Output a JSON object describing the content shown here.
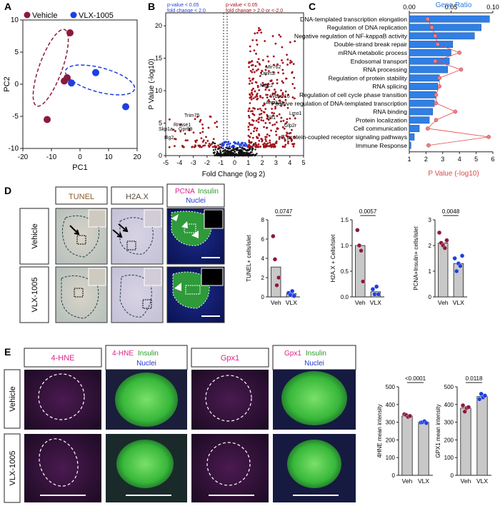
{
  "panels": {
    "A": "A",
    "B": "B",
    "C": "C",
    "D": "D",
    "E": "E"
  },
  "panelA": {
    "legend": [
      "Vehicle",
      "VLX-1005"
    ],
    "xlabel": "PC1",
    "ylabel": "PC2",
    "xticks": [
      "-20",
      "-10",
      "0",
      "10",
      "20"
    ],
    "yticks": [
      "10",
      "5",
      "0",
      "-5",
      "-10"
    ],
    "colors": {
      "vehicle": "#8b1a3a",
      "vlx": "#1f3fe0"
    }
  },
  "panelB": {
    "title_left_1": "p-value < 0.05",
    "title_left_2": "fold change < 2.0",
    "title_right_1": "p-value < 0.05",
    "title_right_2": "fold change > 2.0 or <-2.0",
    "xlabel": "Fold Change (log 2)",
    "ylabel": "P Value (-log10)",
    "xticks": [
      "-5",
      "-4",
      "-3",
      "-2",
      "-1",
      "0",
      "1",
      "2",
      "3",
      "4",
      "5"
    ],
    "yticks": [
      "20",
      "15",
      "10",
      "5",
      "0"
    ],
    "gene_labels": [
      "Mir762",
      "Dmrt1i",
      "Nt5c2",
      "Wbscr16",
      "Anp32b",
      "Lmo1",
      "Elf1",
      "Glp2r",
      "Trim75",
      "Rnase1",
      "Skp1a",
      "Gpr89",
      "Ifig2"
    ]
  },
  "panelC": {
    "top_axis_title": "Gene Ratio",
    "top_ticks": [
      "0.00",
      "0.05",
      "0.10"
    ],
    "bottom_ticks": [
      "1",
      "2",
      "3",
      "4",
      "5",
      "6"
    ],
    "bottom_axis_title": "P Value (-log10)",
    "terms": [
      {
        "label": "DNA-templated transcription elongation",
        "pval": 5.8,
        "ratio": 0.022
      },
      {
        "label": "Regulation of DNA replication",
        "pval": 5.3,
        "ratio": 0.027
      },
      {
        "label": "Negative regulation of NF-kappaB activity",
        "pval": 4.9,
        "ratio": 0.031
      },
      {
        "label": "Double-strand break repair",
        "pval": 3.6,
        "ratio": 0.034
      },
      {
        "label": "mRNA metabolic process",
        "pval": 3.5,
        "ratio": 0.06
      },
      {
        "label": "Endosomal transport",
        "pval": 3.4,
        "ratio": 0.031
      },
      {
        "label": "RNA processing",
        "pval": 3.3,
        "ratio": 0.062
      },
      {
        "label": "Regulation of protein stability",
        "pval": 2.8,
        "ratio": 0.036
      },
      {
        "label": "RNA splicing",
        "pval": 2.7,
        "ratio": 0.036
      },
      {
        "label": "Regulation of cell cycle phase transition",
        "pval": 2.6,
        "ratio": 0.032
      },
      {
        "label": "Positive regulation of DNA-templated transcription",
        "pval": 2.5,
        "ratio": 0.032
      },
      {
        "label": "RNA binding",
        "pval": 2.4,
        "ratio": 0.055
      },
      {
        "label": "Protein localization",
        "pval": 2.2,
        "ratio": 0.032
      },
      {
        "label": "Cell communication",
        "pval": 1.6,
        "ratio": 0.022
      },
      {
        "label": "G protein-coupled receptor signaling pathways",
        "pval": 1.3,
        "ratio": 0.095
      },
      {
        "label": "Immune Response",
        "pval": 1.1,
        "ratio": 0.023
      }
    ]
  },
  "panelD": {
    "headers": [
      "TUNEL",
      "H2A.X"
    ],
    "pcna_header_1": "PCNA",
    "pcna_header_2": "Insulin",
    "pcna_header_3": "Nuclei",
    "row_labels": [
      "Vehicle",
      "VLX-1005"
    ],
    "bars": [
      {
        "ylabel": "TUNEL+ cells/islet",
        "pval": "0.0747",
        "yticks": [
          "0",
          "2",
          "4",
          "6",
          "8"
        ],
        "ymax": 8,
        "veh": 3.1,
        "vlx": 0.35
      },
      {
        "ylabel": "H2A.X + Cells/Islet",
        "pval": "0.0057",
        "yticks": [
          "0.0",
          "0.5",
          "1.0",
          "1.5"
        ],
        "ymax": 1.5,
        "veh": 1.0,
        "vlx": 0.1
      },
      {
        "ylabel": "PCNA+Insulin+ cells/islet",
        "pval": "0.0048",
        "yticks": [
          "0",
          "1",
          "2",
          "3"
        ],
        "ymax": 3,
        "veh": 2.1,
        "vlx": 1.3
      }
    ],
    "xcats": [
      "Veh",
      "VLX"
    ]
  },
  "panelE": {
    "headers": [
      "4-HNE",
      "4-HNE",
      "Insulin",
      "Nuclei",
      "Gpx1",
      "Gpx1",
      "Insulin",
      "Nuclei"
    ],
    "row_labels": [
      "Vehicle",
      "VLX-1005"
    ],
    "bars": [
      {
        "ylabel": "4HNE mean intensity",
        "pval": "<0.0001",
        "yticks": [
          "0",
          "100",
          "200",
          "300",
          "400",
          "500"
        ],
        "ymax": 500,
        "veh": 335,
        "vlx": 300
      },
      {
        "ylabel": "GPX1 mean intensity",
        "pval": "0.0118",
        "yticks": [
          "0",
          "100",
          "200",
          "300",
          "400",
          "500"
        ],
        "ymax": 500,
        "veh": 380,
        "vlx": 445
      }
    ],
    "xcats": [
      "Veh",
      "VLX"
    ]
  },
  "chart_data": [
    {
      "type": "scatter",
      "xlabel": "PC1",
      "ylabel": "PC2",
      "xlim": [
        -20,
        20
      ],
      "ylim": [
        -10,
        10
      ],
      "series": [
        {
          "name": "Vehicle",
          "x": [
            -11.5,
            -5.5,
            -4.5,
            -3.5
          ],
          "y": [
            -5.5,
            0.5,
            1.0,
            8.0
          ]
        },
        {
          "name": "VLX-1005",
          "x": [
            -3.0,
            5.5,
            16.0
          ],
          "y": [
            0.2,
            1.8,
            -3.5
          ]
        }
      ]
    },
    {
      "type": "scatter",
      "xlabel": "Fold Change (log 2)",
      "ylabel": "P Value (-log10)",
      "xlim": [
        -5,
        5
      ],
      "ylim": [
        0,
        22
      ],
      "annotations": [
        "Mir762",
        "Dmrt1i",
        "Nt5c2",
        "Wbscr16",
        "Anp32b",
        "Lmo1",
        "Elf1",
        "Glp2r",
        "Trim75",
        "Rnase1",
        "Skp1a",
        "Gpr89",
        "Ifig2"
      ]
    },
    {
      "type": "bar",
      "categories": [
        "DNA-templated transcription elongation",
        "Regulation of DNA replication",
        "Negative regulation of NF-kappaB activity",
        "Double-strand break repair",
        "mRNA metabolic process",
        "Endosomal transport",
        "RNA processing",
        "Regulation of protein stability",
        "RNA splicing",
        "Regulation of cell cycle phase transition",
        "Positive regulation of DNA-templated transcription",
        "RNA binding",
        "Protein localization",
        "Cell communication",
        "G protein-coupled receptor signaling pathways",
        "Immune Response"
      ],
      "series": [
        {
          "name": "P Value (-log10)",
          "values": [
            5.8,
            5.3,
            4.9,
            3.6,
            3.5,
            3.4,
            3.3,
            2.8,
            2.7,
            2.6,
            2.5,
            2.4,
            2.2,
            1.6,
            1.3,
            1.1
          ]
        },
        {
          "name": "Gene Ratio",
          "values": [
            0.022,
            0.027,
            0.031,
            0.034,
            0.06,
            0.031,
            0.062,
            0.036,
            0.036,
            0.032,
            0.032,
            0.055,
            0.032,
            0.022,
            0.095,
            0.023
          ]
        }
      ]
    },
    {
      "type": "bar",
      "categories": [
        "Veh",
        "VLX"
      ],
      "values": [
        3.1,
        0.35
      ],
      "ylabel": "TUNEL+ cells/islet",
      "ylim": [
        0,
        8
      ]
    },
    {
      "type": "bar",
      "categories": [
        "Veh",
        "VLX"
      ],
      "values": [
        1.0,
        0.1
      ],
      "ylabel": "H2A.X + Cells/Islet",
      "ylim": [
        0,
        1.5
      ]
    },
    {
      "type": "bar",
      "categories": [
        "Veh",
        "VLX"
      ],
      "values": [
        2.1,
        1.3
      ],
      "ylabel": "PCNA+Insulin+ cells/islet",
      "ylim": [
        0,
        3
      ]
    },
    {
      "type": "bar",
      "categories": [
        "Veh",
        "VLX"
      ],
      "values": [
        335,
        300
      ],
      "ylabel": "4HNE mean intensity",
      "ylim": [
        0,
        500
      ]
    },
    {
      "type": "bar",
      "categories": [
        "Veh",
        "VLX"
      ],
      "values": [
        380,
        445
      ],
      "ylabel": "GPX1 mean intensity",
      "ylim": [
        0,
        500
      ]
    }
  ]
}
